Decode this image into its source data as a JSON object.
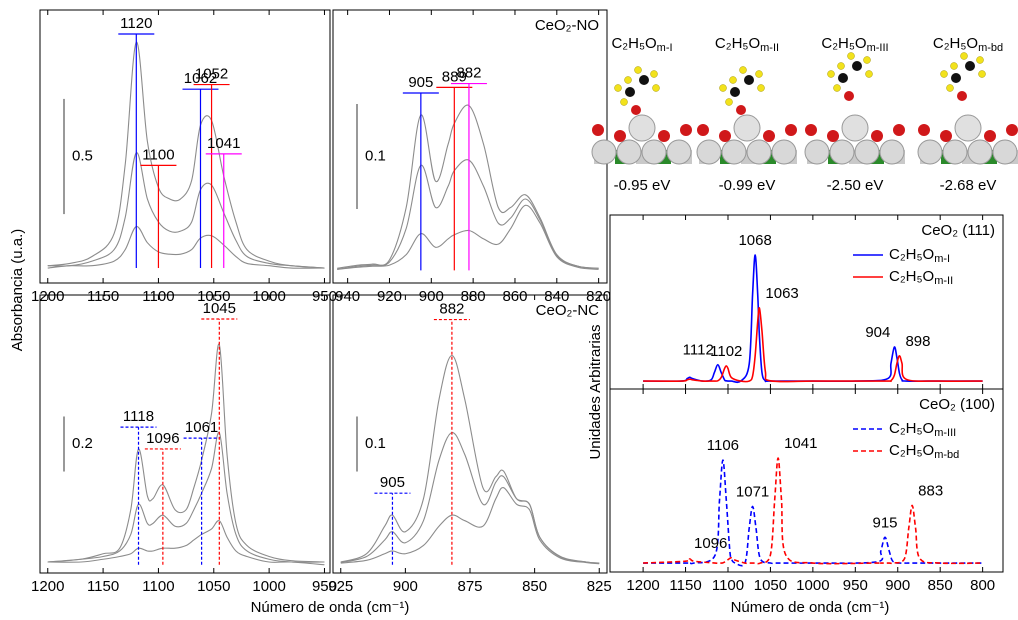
{
  "chart_data": [
    {
      "type": "line",
      "xlim": [
        1207,
        945
      ],
      "xticks": [
        1200,
        1150,
        1100,
        1050,
        1000,
        950
      ],
      "ylim": [
        -0.065,
        1.12
      ],
      "scale_bar": 0.5,
      "x": [
        1200,
        1180,
        1160,
        1140,
        1130,
        1120,
        1110,
        1100,
        1090,
        1080,
        1070,
        1062,
        1052,
        1041,
        1030,
        1020,
        1000,
        980,
        950
      ],
      "series": [
        {
          "color": "#8c8c8c",
          "values": [
            0.01,
            0.02,
            0.05,
            0.15,
            0.45,
            0.98,
            0.55,
            0.35,
            0.3,
            0.3,
            0.38,
            0.62,
            0.64,
            0.4,
            0.2,
            0.08,
            0.03,
            0.01,
            0
          ]
        },
        {
          "color": "#8c8c8c",
          "values": [
            0.01,
            0.01,
            0.03,
            0.08,
            0.22,
            0.5,
            0.3,
            0.2,
            0.16,
            0.16,
            0.2,
            0.34,
            0.36,
            0.24,
            0.12,
            0.05,
            0.02,
            0.01,
            0
          ]
        },
        {
          "color": "#8c8c8c",
          "values": [
            0,
            0.01,
            0.01,
            0.03,
            0.08,
            0.18,
            0.11,
            0.07,
            0.06,
            0.06,
            0.08,
            0.13,
            0.14,
            0.1,
            0.05,
            0.02,
            0.01,
            0,
            0
          ]
        }
      ],
      "markers": [
        {
          "x": 1120,
          "color": "#0000ff"
        },
        {
          "x": 1062,
          "color": "#0000ff"
        },
        {
          "x": 1100,
          "color": "#ff0000"
        },
        {
          "x": 1052,
          "color": "#ff0000"
        },
        {
          "x": 1041,
          "color": "#ff00ff"
        }
      ],
      "dashed": false
    },
    {
      "type": "line",
      "label": "CeO₂-NO",
      "xlim": [
        947,
        816
      ],
      "xticks": [
        940,
        920,
        900,
        880,
        860,
        840,
        820
      ],
      "ylim": [
        -0.012,
        0.248
      ],
      "scale_bar": 0.1,
      "x": [
        945,
        935,
        928,
        920,
        912,
        905,
        898,
        892,
        889,
        882,
        875,
        868,
        862,
        855,
        848,
        840,
        830,
        820
      ],
      "series": [
        {
          "color": "#8c8c8c",
          "values": [
            0.002,
            0.005,
            0.006,
            0.01,
            0.06,
            0.148,
            0.085,
            0.12,
            0.14,
            0.157,
            0.12,
            0.06,
            0.06,
            0.072,
            0.05,
            0.015,
            0.004,
            0.002
          ]
        },
        {
          "color": "#8c8c8c",
          "values": [
            0.001,
            0.004,
            0.005,
            0.008,
            0.04,
            0.1,
            0.06,
            0.08,
            0.095,
            0.105,
            0.08,
            0.045,
            0.05,
            0.068,
            0.048,
            0.014,
            0.004,
            0.002
          ]
        },
        {
          "color": "#8c8c8c",
          "values": [
            0.001,
            0.003,
            0.004,
            0.005,
            0.015,
            0.035,
            0.022,
            0.03,
            0.034,
            0.038,
            0.03,
            0.025,
            0.04,
            0.062,
            0.045,
            0.013,
            0.003,
            0.001
          ]
        }
      ],
      "markers": [
        {
          "x": 905,
          "color": "#0000ff"
        },
        {
          "x": 889,
          "color": "#ff0000"
        },
        {
          "x": 882,
          "color": "#ff00ff"
        }
      ],
      "dashed": false
    },
    {
      "type": "line",
      "xlim": [
        1207,
        945
      ],
      "xticks": [
        1200,
        1150,
        1100,
        1050,
        1000,
        950
      ],
      "ylim": [
        -0.03,
        0.98
      ],
      "scale_bar": 0.2,
      "x": [
        1200,
        1170,
        1150,
        1135,
        1125,
        1118,
        1110,
        1105,
        1096,
        1085,
        1075,
        1068,
        1061,
        1052,
        1045,
        1038,
        1030,
        1020,
        1000,
        980,
        950
      ],
      "series": [
        {
          "color": "#8c8c8c",
          "values": [
            0.01,
            0.02,
            0.04,
            0.06,
            0.2,
            0.42,
            0.25,
            0.24,
            0.29,
            0.2,
            0.2,
            0.28,
            0.38,
            0.55,
            0.8,
            0.4,
            0.15,
            0.07,
            0.03,
            0.015,
            0.01
          ]
        },
        {
          "color": "#8c8c8c",
          "values": [
            0.01,
            0.02,
            0.03,
            0.05,
            0.11,
            0.22,
            0.15,
            0.15,
            0.18,
            0.14,
            0.15,
            0.2,
            0.26,
            0.35,
            0.48,
            0.26,
            0.11,
            0.05,
            0.02,
            0.01,
            0.01
          ]
        },
        {
          "color": "#8c8c8c",
          "values": [
            0.01,
            0.01,
            0.02,
            0.03,
            0.04,
            0.06,
            0.05,
            0.05,
            0.06,
            0.06,
            0.07,
            0.09,
            0.11,
            0.13,
            0.16,
            0.1,
            0.05,
            0.03,
            0.01,
            0.01,
            0
          ]
        }
      ],
      "markers": [
        {
          "x": 1118,
          "color": "#0000ff"
        },
        {
          "x": 1096,
          "color": "#ff0000"
        },
        {
          "x": 1061,
          "color": "#0000ff"
        },
        {
          "x": 1045,
          "color": "#ff0000"
        }
      ],
      "dashed": true
    },
    {
      "type": "line",
      "label": "CeO₂-NC",
      "xlim": [
        928,
        822
      ],
      "xticks": [
        925,
        900,
        875,
        850,
        825
      ],
      "ylim": [
        -0.015,
        0.49
      ],
      "scale_bar": 0.1,
      "x": [
        925,
        915,
        908,
        905,
        900,
        893,
        887,
        882,
        877,
        870,
        865,
        862,
        857,
        852,
        848,
        840,
        830,
        825
      ],
      "series": [
        {
          "color": "#8c8c8c",
          "values": [
            0.005,
            0.02,
            0.07,
            0.09,
            0.06,
            0.12,
            0.3,
            0.38,
            0.3,
            0.14,
            0.16,
            0.17,
            0.12,
            0.11,
            0.05,
            0.015,
            0.005,
            0.003
          ]
        },
        {
          "color": "#8c8c8c",
          "values": [
            0.004,
            0.015,
            0.045,
            0.06,
            0.04,
            0.08,
            0.19,
            0.24,
            0.2,
            0.11,
            0.15,
            0.16,
            0.12,
            0.11,
            0.05,
            0.014,
            0.005,
            0.003
          ]
        },
        {
          "color": "#8c8c8c",
          "values": [
            0.003,
            0.008,
            0.02,
            0.025,
            0.02,
            0.035,
            0.07,
            0.09,
            0.08,
            0.07,
            0.12,
            0.14,
            0.11,
            0.1,
            0.045,
            0.012,
            0.004,
            0.002
          ]
        }
      ],
      "markers": [
        {
          "x": 905,
          "color": "#0000ff"
        },
        {
          "x": 882,
          "color": "#ff0000"
        }
      ],
      "dashed": true
    },
    {
      "type": "line",
      "label": "CeO₂ (111)",
      "xlim": [
        1239,
        776
      ],
      "xticks": [
        1200,
        1150,
        1100,
        1050,
        1000,
        950,
        900,
        850,
        800
      ],
      "tick_labels": false,
      "ylim": [
        -0.063,
        1.317
      ],
      "x": [
        1200,
        1155,
        1148,
        1145,
        1142,
        1130,
        1120,
        1116,
        1112,
        1108,
        1104,
        1102,
        1100,
        1096,
        1085,
        1075,
        1071,
        1068,
        1065,
        1063,
        1060,
        1056,
        1050,
        1000,
        950,
        912,
        908,
        904,
        901,
        898,
        895,
        890,
        850,
        800
      ],
      "series": [
        {
          "name": "C₂H₅O",
          "subscript": "m-I",
          "color": "#0000ff",
          "dashed": false,
          "values": [
            0,
            0,
            0.02,
            0.03,
            0.02,
            0,
            0.009,
            0.068,
            0.13,
            0.068,
            0.009,
            0.002,
            0,
            0,
            0,
            0.135,
            0.69,
            1.0,
            0.69,
            0.36,
            0.07,
            0.003,
            0,
            0,
            0,
            0.019,
            0.14,
            0.27,
            0.186,
            0.062,
            0.01,
            0,
            0,
            0
          ]
        },
        {
          "name": "C₂H₅O",
          "subscript": "m-II",
          "color": "#ff0000",
          "dashed": false,
          "values": [
            0,
            0,
            0.01,
            0.015,
            0.01,
            0,
            0,
            0,
            0.002,
            0.028,
            0.1,
            0.12,
            0.1,
            0.028,
            0,
            0,
            0.04,
            0.2,
            0.47,
            0.58,
            0.4,
            0.078,
            0.002,
            0,
            0,
            0,
            0.003,
            0.046,
            0.14,
            0.2,
            0.14,
            0.014,
            0,
            0
          ]
        }
      ],
      "peak_labels": [
        {
          "x": 1112,
          "color": "#0000ff"
        },
        {
          "x": 1102,
          "color": "#ff0000"
        },
        {
          "x": 1068,
          "color": "#0000ff"
        },
        {
          "x": 1063,
          "color": "#ff0000"
        },
        {
          "x": 904,
          "color": "#0000ff"
        },
        {
          "x": 898,
          "color": "#ff0000"
        }
      ]
    },
    {
      "type": "line",
      "label": "CeO₂ (100)",
      "xlim": [
        1239,
        776
      ],
      "xticks": [
        1200,
        1150,
        1100,
        1050,
        1000,
        950,
        900,
        850,
        800
      ],
      "ylim": [
        -0.087,
        1.69
      ],
      "x": [
        1200,
        1150,
        1145,
        1140,
        1115,
        1110,
        1106,
        1102,
        1098,
        1096,
        1092,
        1080,
        1075,
        1071,
        1067,
        1062,
        1050,
        1045,
        1041,
        1037,
        1032,
        1000,
        925,
        920,
        915,
        910,
        905,
        892,
        887,
        883,
        879,
        874,
        850,
        800
      ],
      "series": [
        {
          "name": "C₂H₅O",
          "subscript": "m-III",
          "color": "#0000ff",
          "dashed": true,
          "values": [
            0,
            0,
            0,
            0,
            0.08,
            0.61,
            1.0,
            0.61,
            0.135,
            0.044,
            0.002,
            0,
            0.34,
            0.55,
            0.34,
            0.044,
            0,
            0,
            0,
            0,
            0,
            0,
            0.011,
            0.115,
            0.25,
            0.115,
            0.011,
            0,
            0,
            0,
            0,
            0,
            0,
            0
          ]
        },
        {
          "name": "C₂H₅O",
          "subscript": "m-bd",
          "color": "#ff0000",
          "dashed": true,
          "values": [
            0,
            0.018,
            0.04,
            0.018,
            0,
            0,
            0.002,
            0.02,
            0.045,
            0.05,
            0.03,
            0,
            0,
            0,
            0,
            0,
            0.08,
            0.61,
            1.02,
            0.62,
            0.08,
            0,
            0,
            0,
            0,
            0,
            0,
            0.044,
            0.34,
            0.56,
            0.34,
            0.044,
            0,
            0
          ]
        }
      ],
      "peak_labels": [
        {
          "x": 1106,
          "color": "#0000ff"
        },
        {
          "x": 1096,
          "color": "#ff0000"
        },
        {
          "x": 1071,
          "color": "#0000ff"
        },
        {
          "x": 1041,
          "color": "#ff0000"
        },
        {
          "x": 915,
          "color": "#0000ff"
        },
        {
          "x": 883,
          "color": "#ff0000"
        }
      ]
    }
  ],
  "figure": {
    "y_label_left": "Absorbancia (u.a.)",
    "x_label_left": "Número de onda (cm⁻¹)",
    "y_label_right": "Unidades Arbitrarias",
    "x_label_right": "Número de onda (cm⁻¹)"
  },
  "structures": [
    {
      "name": "C₂H₅O",
      "subscript": "m-I",
      "energy": "-0.95 eV"
    },
    {
      "name": "C₂H₅O",
      "subscript": "m-II",
      "energy": "-0.99 eV"
    },
    {
      "name": "C₂H₅O",
      "subscript": "m-III",
      "energy": "-2.50 eV"
    },
    {
      "name": "C₂H₅O",
      "subscript": "m-bd",
      "energy": "-2.68 eV"
    }
  ]
}
